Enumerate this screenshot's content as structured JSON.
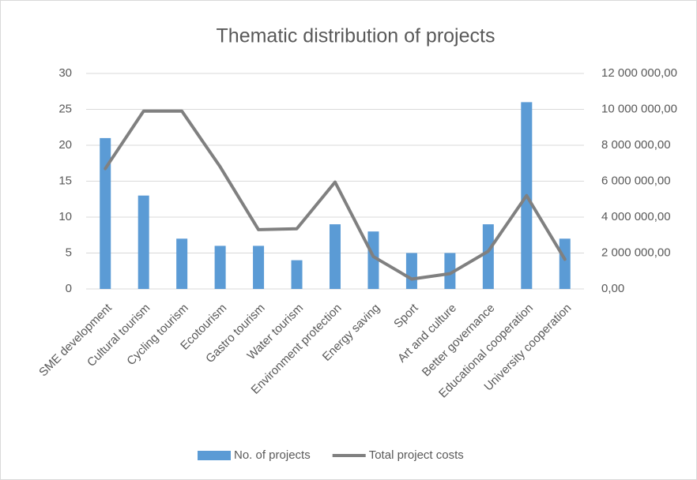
{
  "chart_data": {
    "type": "bar_line",
    "title": "Thematic distribution of projects",
    "categories": [
      "SME development",
      "Cultural tourism",
      "Cycling tourism",
      "Ecotourism",
      "Gastro tourism",
      "Water tourism",
      "Environment protection",
      "Energy saving",
      "Sport",
      "Art and culture",
      "Better governance",
      "Educational cooperation",
      "University cooperation"
    ],
    "series": [
      {
        "name": "No. of projects",
        "type": "bar",
        "color": "#5b9bd5",
        "values": [
          21,
          13,
          7,
          6,
          6,
          4,
          9,
          8,
          5,
          5,
          9,
          26,
          7
        ]
      },
      {
        "name": "Total project costs",
        "type": "line",
        "axis": "y2",
        "color": "#808080",
        "values": [
          6700000,
          9900000,
          9900000,
          6800000,
          3300000,
          3350000,
          5950000,
          1800000,
          550000,
          850000,
          2100000,
          5200000,
          1650000
        ]
      }
    ],
    "ylim": [
      0,
      30
    ],
    "yticks": [
      0,
      5,
      10,
      15,
      20,
      25,
      30
    ],
    "y2lim": [
      0,
      12000000
    ],
    "y2ticks": [
      {
        "value": 0,
        "label": "0,00"
      },
      {
        "value": 2000000,
        "label": "2 000 000,00"
      },
      {
        "value": 4000000,
        "label": "4 000 000,00"
      },
      {
        "value": 6000000,
        "label": "6 000 000,00"
      },
      {
        "value": 8000000,
        "label": "8 000 000,00"
      },
      {
        "value": 10000000,
        "label": "10 000 000,00"
      },
      {
        "value": 12000000,
        "label": "12 000 000,00"
      }
    ],
    "grid": true,
    "legend": "bottom"
  }
}
